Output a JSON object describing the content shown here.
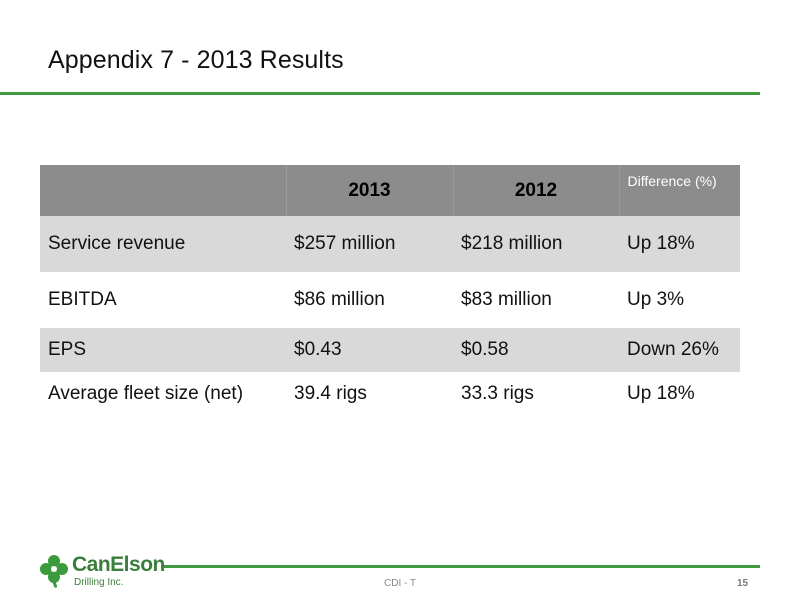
{
  "title": "Appendix 7 - 2013 Results",
  "table": {
    "header": {
      "blank": "",
      "y2013": "2013",
      "y2012": "2012",
      "diff": "Difference (%)"
    },
    "rows": [
      {
        "label": "Service revenue",
        "y2013": "$257 million",
        "y2012": "$218 million",
        "diff": "Up 18%"
      },
      {
        "label": "EBITDA",
        "y2013": "$86 million",
        "y2012": "$83 million",
        "diff": "Up 3%"
      },
      {
        "label": "EPS",
        "y2013": "$0.43",
        "y2012": "$0.58",
        "diff": "Down 26%"
      },
      {
        "label": "Average fleet size (net)",
        "y2013": "39.4 rigs",
        "y2012": "33.3 rigs",
        "diff": "Up 18%"
      }
    ]
  },
  "footer": {
    "logo_name": "CanElson",
    "logo_sub": "Drilling Inc.",
    "center": "CDI - T",
    "page": "15"
  },
  "colors": {
    "accent_green": "#3f9a3f",
    "header_gray": "#8c8c8c",
    "row_shade": "#d9d9d9"
  },
  "icons": {
    "logo": "clover-leaf-icon"
  }
}
